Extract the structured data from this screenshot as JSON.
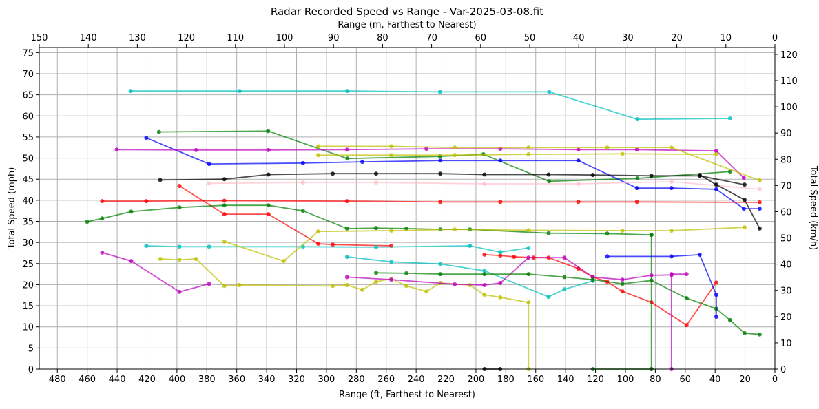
{
  "chart_data": {
    "type": "line",
    "title": "Radar Recorded Speed vs Range - Var-2025-03-08.fit",
    "xlabel": "Range (ft, Farthest to Nearest)",
    "x2label": "Range (m, Farthest to Nearest)",
    "ylabel": "Total Speed (mph)",
    "y2label": "Total Speed (km/h)",
    "xlim": [
      492.1,
      0
    ],
    "xticks": [
      0,
      20,
      40,
      60,
      80,
      100,
      120,
      140,
      160,
      180,
      200,
      220,
      240,
      260,
      280,
      300,
      320,
      340,
      360,
      380,
      400,
      420,
      440,
      460,
      480
    ],
    "x2lim": [
      150,
      0
    ],
    "x2ticks": [
      0,
      10,
      20,
      30,
      40,
      50,
      60,
      70,
      80,
      90,
      100,
      110,
      120,
      130,
      140,
      150
    ],
    "ylim": [
      0,
      76.2
    ],
    "yticks": [
      0,
      5,
      10,
      15,
      20,
      25,
      30,
      35,
      40,
      45,
      50,
      55,
      60,
      65,
      70,
      75
    ],
    "y2lim": [
      0,
      122.6
    ],
    "y2ticks": [
      0,
      10,
      20,
      30,
      40,
      50,
      60,
      70,
      80,
      90,
      100,
      110,
      120
    ],
    "grid": true,
    "series": [
      {
        "color": "#00bfbf",
        "x": [
          431,
          358,
          286,
          224,
          151,
          92,
          30
        ],
        "values": [
          65.9,
          65.9,
          65.9,
          65.7,
          65.7,
          59.2,
          59.4
        ]
      },
      {
        "color": "#008000",
        "x": [
          412,
          339,
          286,
          224,
          195,
          151,
          92,
          30
        ],
        "values": [
          56.2,
          56.4,
          49.9,
          50.4,
          50.9,
          44.5,
          45.2,
          46.8
        ]
      },
      {
        "color": "#0000ff",
        "x": [
          420.5,
          378.5,
          315.7,
          276,
          223.8,
          183.7,
          131.5,
          92.3,
          69.2,
          39.2,
          20.8,
          10.2
        ],
        "values": [
          54.8,
          48.6,
          48.8,
          49.1,
          49.4,
          49.4,
          49.4,
          42.9,
          42.9,
          42.6,
          38,
          38
        ]
      },
      {
        "color": "#bf00bf",
        "x": [
          440.3,
          387.2,
          338.8,
          286.2,
          233.1,
          183.7,
          131.5,
          92.3,
          39.2,
          20.8
        ],
        "values": [
          52,
          51.9,
          51.9,
          52,
          52.2,
          52.2,
          52,
          52,
          51.7,
          45.3
        ]
      },
      {
        "color": "#bfbf00",
        "x": [
          305.5,
          256.6,
          214.2,
          164.8,
          112.2,
          69.2,
          10.2
        ],
        "values": [
          52.8,
          52.8,
          52.5,
          52.5,
          52.5,
          52.5,
          44.7
        ]
      },
      {
        "color": "#bfbf00",
        "x": [
          305.5,
          256.6,
          214.2,
          164.8,
          102,
          39.2
        ],
        "values": [
          50.7,
          50.7,
          50.7,
          50.9,
          51,
          50.9
        ]
      },
      {
        "color": "#ffc0cb",
        "x": [
          378.5,
          315.7,
          266.8,
          194.3,
          131.5,
          69.2,
          10.2
        ],
        "values": [
          44,
          44.2,
          44.2,
          43.9,
          43.9,
          44.4,
          42.6
        ]
      },
      {
        "color": "#000000",
        "x": [
          411.2,
          368.3,
          338.8,
          295.8,
          266.8,
          223.8,
          194.3,
          151.4,
          121.8,
          82.6,
          50.3,
          20.3
        ],
        "values": [
          44.8,
          45,
          46.1,
          46.3,
          46.3,
          46.3,
          46.1,
          46.1,
          46,
          45.8,
          45.8,
          43.7
        ]
      },
      {
        "color": "#000000",
        "x": [
          50.3,
          39.2,
          20.3,
          10.2
        ],
        "values": [
          46,
          43.7,
          40.1,
          33.3
        ]
      },
      {
        "color": "#ff0000",
        "x": [
          450,
          420.5,
          368.3,
          286.2,
          223.8,
          183.7,
          131.5,
          92.3,
          10.2
        ],
        "values": [
          39.8,
          39.8,
          39.9,
          39.8,
          39.6,
          39.6,
          39.6,
          39.6,
          39.5
        ]
      },
      {
        "color": "#ff0000",
        "x": [
          398.3,
          368.3,
          338.8,
          305.5,
          295.8,
          256.6
        ],
        "values": [
          43.4,
          36.7,
          36.7,
          29.7,
          29.5,
          29.2
        ]
      },
      {
        "color": "#ff0000",
        "x": [
          194.3,
          183.7,
          174.5,
          161.5,
          151.4,
          131.5,
          121.8,
          112.2,
          102,
          82.6,
          59.1,
          39.2
        ],
        "values": [
          27.1,
          26.9,
          26.6,
          26.4,
          26.4,
          23.8,
          21.8,
          20.7,
          18.4,
          15.8,
          10.4,
          20.5
        ]
      },
      {
        "color": "#008000",
        "x": [
          460.1,
          450,
          430.6,
          398.3,
          368.3,
          338.8,
          315.7,
          286.2,
          266.8,
          246.5,
          223.8,
          204,
          151.4,
          112.2,
          82.6
        ],
        "values": [
          34.9,
          35.7,
          37.3,
          38.3,
          38.8,
          38.8,
          37.5,
          33.3,
          33.4,
          33.3,
          33.1,
          33.1,
          32.2,
          32.1,
          31.8
        ]
      },
      {
        "color": "#008000",
        "x": [
          82.6,
          82.6
        ],
        "values": [
          31.8,
          0
        ]
      },
      {
        "color": "#00bfbf",
        "x": [
          420.5,
          398.3,
          378.5,
          315.7,
          266.8,
          204,
          183.7,
          164.8
        ],
        "values": [
          29.2,
          29,
          29,
          29,
          28.9,
          29.2,
          27.7,
          28.7
        ]
      },
      {
        "color": "#00bfbf",
        "x": [
          286.2,
          256.6,
          223.8,
          194.3,
          151.4,
          140.8,
          121.8
        ],
        "values": [
          26.6,
          25.4,
          24.9,
          23.3,
          17.1,
          18.9,
          20.9
        ]
      },
      {
        "color": "#bfbf00",
        "x": [
          411.2,
          398.3,
          387.2,
          368.3,
          358.2,
          295.8,
          286.2,
          276,
          266.8,
          256.6,
          246.5,
          233.1,
          223.8,
          204,
          194.3,
          183.7,
          164.8,
          164.8
        ],
        "values": [
          26.1,
          25.9,
          26.1,
          19.7,
          19.9,
          19.7,
          19.9,
          18.8,
          20.7,
          21.4,
          19.7,
          18.4,
          20.4,
          19.9,
          17.6,
          17,
          15.8,
          0
        ]
      },
      {
        "color": "#bfbf00",
        "x": [
          368.3,
          328.6,
          305.5,
          256.6,
          214.2,
          164.8,
          102,
          69.2,
          20.3
        ],
        "values": [
          30.2,
          25.6,
          32.6,
          32.8,
          33.1,
          32.9,
          32.8,
          32.8,
          33.6
        ]
      },
      {
        "color": "#bf00bf",
        "x": [
          450,
          430.6,
          398.3,
          378.5
        ],
        "values": [
          27.6,
          25.6,
          18.3,
          20.2
        ]
      },
      {
        "color": "#bf00bf",
        "x": [
          286.2,
          256.6,
          214.2,
          194.3,
          183.7,
          164.8,
          140.8,
          121.8,
          102,
          82.6,
          69.2,
          59.1,
          69.2,
          69.2
        ],
        "values": [
          21.8,
          21.2,
          20.1,
          19.9,
          20.4,
          26.4,
          26.4,
          21.8,
          21.2,
          22.2,
          22.3,
          22.5,
          22.5,
          0
        ]
      },
      {
        "color": "#008000",
        "x": [
          266.8,
          246.5,
          223.8,
          194.3,
          164.8,
          140.8,
          121.8,
          102,
          82.6,
          59.1,
          39.2,
          30,
          20.3,
          10.2
        ],
        "values": [
          22.8,
          22.7,
          22.5,
          22.5,
          22.5,
          21.8,
          21.2,
          20.2,
          21,
          16.8,
          14.3,
          11.6,
          8.5,
          8.2
        ]
      },
      {
        "color": "#0000ff",
        "x": [
          112.2,
          69.2,
          50.3,
          39.2,
          39.2
        ],
        "values": [
          26.7,
          26.7,
          27.1,
          17.6,
          12.4
        ]
      },
      {
        "color": "#008000",
        "x": [
          121.8,
          82.6
        ],
        "values": [
          0,
          0
        ]
      },
      {
        "color": "#000000",
        "x": [
          194.3,
          183.7
        ],
        "values": [
          0,
          0
        ]
      }
    ]
  }
}
